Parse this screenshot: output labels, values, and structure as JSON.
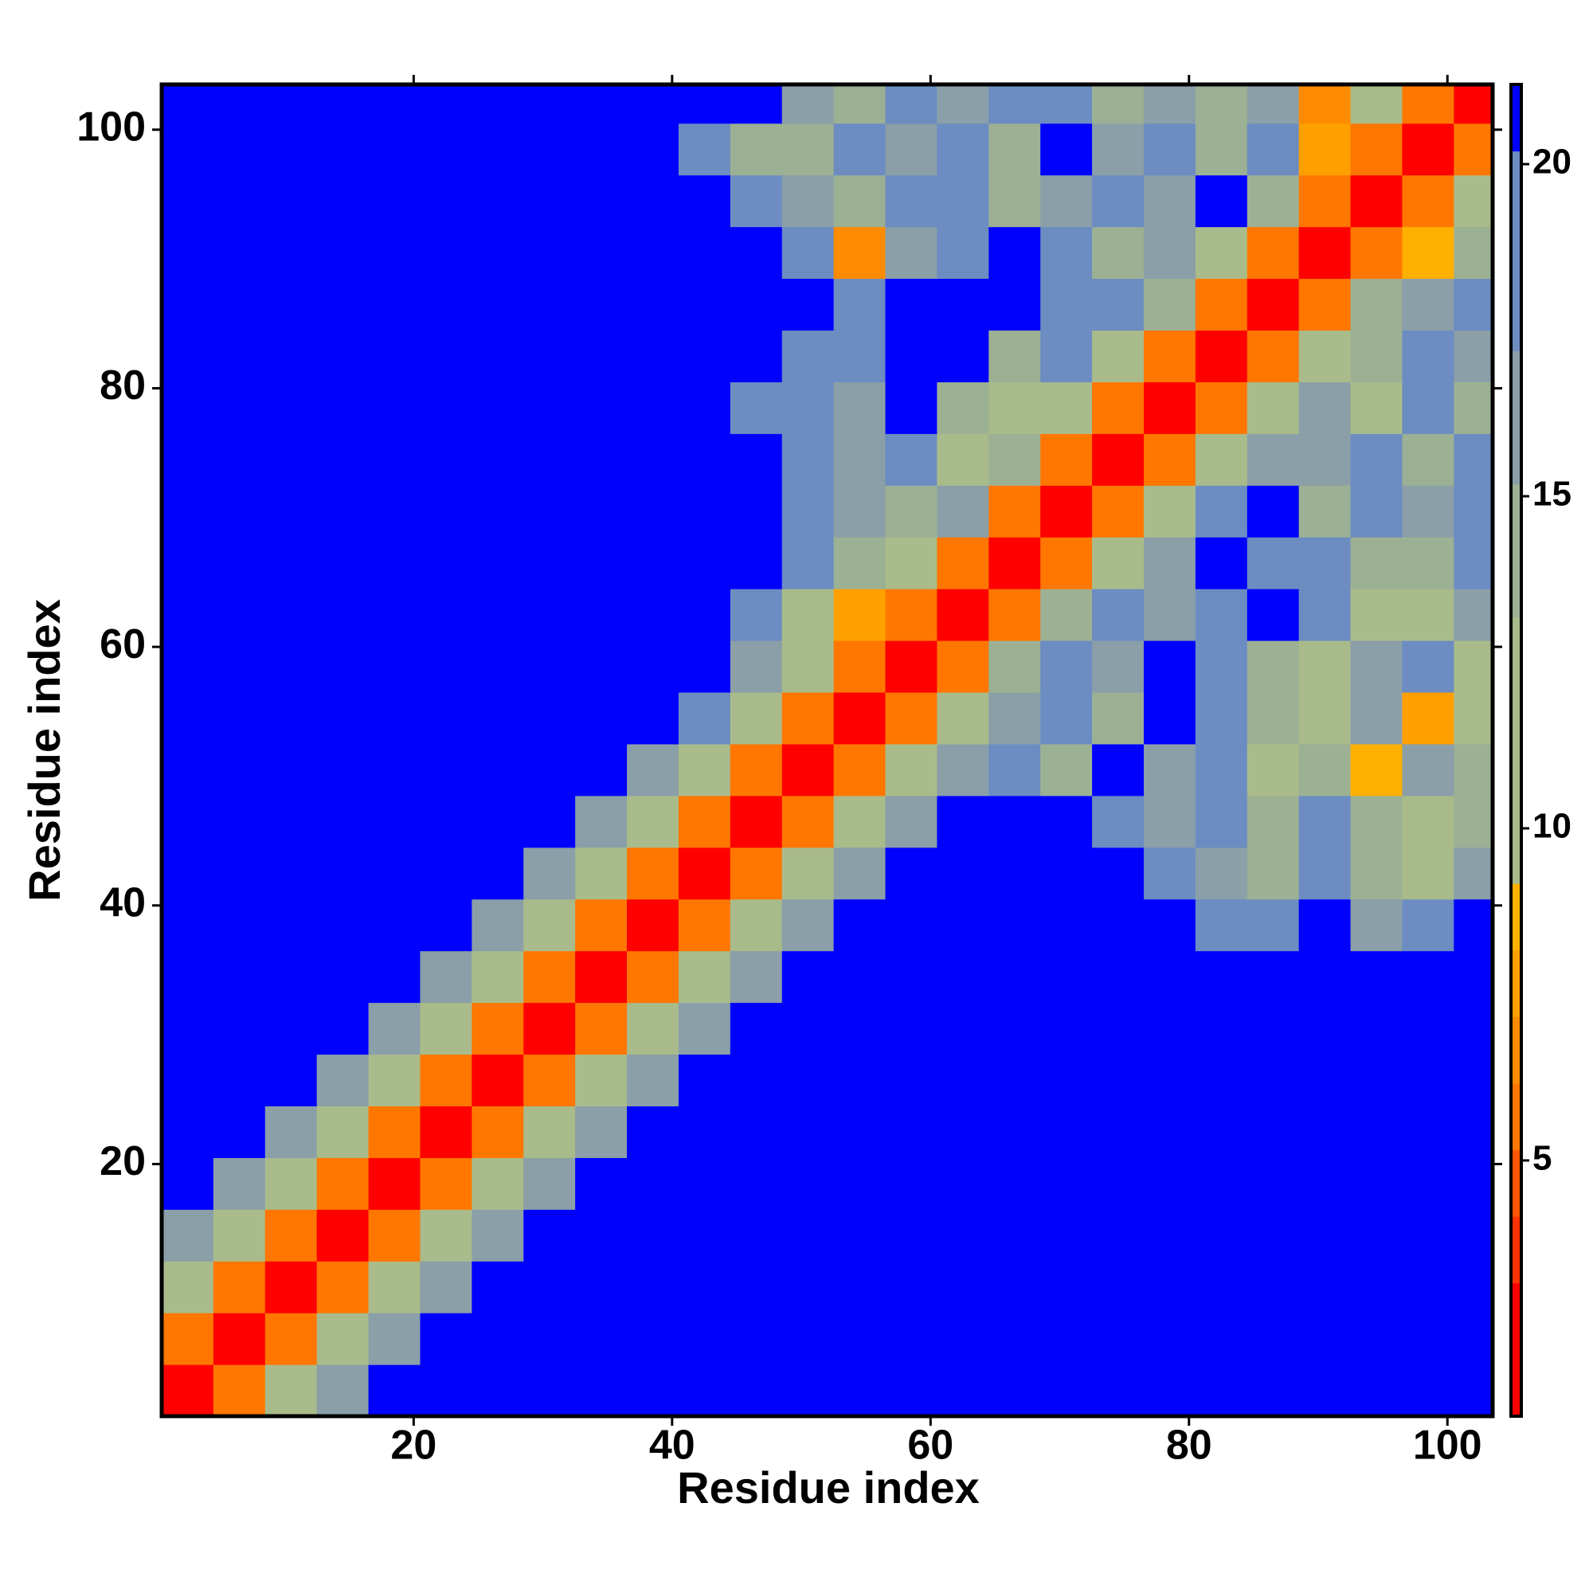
{
  "chart_data": {
    "type": "heatmap",
    "xlabel": "Residue index",
    "ylabel": "Residue index",
    "x_bins": [
      0.5,
      4.5,
      8.5,
      12.5,
      16.5,
      20.5,
      24.5,
      28.5,
      32.5,
      36.5,
      40.5,
      44.5,
      48.5,
      52.5,
      56.5,
      60.5,
      64.5,
      68.5,
      72.5,
      76.5,
      80.5,
      84.5,
      88.5,
      92.5,
      96.5,
      100.5,
      103.5
    ],
    "y_bins": [
      0.5,
      4.5,
      8.5,
      12.5,
      16.5,
      20.5,
      24.5,
      28.5,
      32.5,
      36.5,
      40.5,
      44.5,
      48.5,
      52.5,
      56.5,
      60.5,
      64.5,
      68.5,
      72.5,
      76.5,
      80.5,
      84.5,
      88.5,
      92.5,
      96.5,
      100.5,
      103.5
    ],
    "xlim": [
      0.5,
      103.5
    ],
    "ylim": [
      0.5,
      103.5
    ],
    "xticks": [
      20,
      40,
      60,
      80,
      100
    ],
    "yticks": [
      20,
      40,
      60,
      80,
      100
    ],
    "clim": [
      1.15,
      21.2
    ],
    "cticks": [
      5,
      10,
      15,
      20
    ],
    "colormap": [
      "#ff0000",
      "#ff0000",
      "#ff3300",
      "#ff5500",
      "#ff7700",
      "#ff8c00",
      "#ffa000",
      "#ffb000",
      "#a9bb8a",
      "#a9bb8a",
      "#a9bb8a",
      "#a9bb8a",
      "#9cb094",
      "#9cb094",
      "#8a9fa8",
      "#8a9fa8",
      "#6c8cc2",
      "#6c8cc2",
      "#6c8cc2",
      "#0000ff"
    ],
    "over_color": "#0000ff",
    "values": [
      [
        2,
        6,
        11,
        17,
        25,
        25,
        25,
        25,
        25,
        25,
        25,
        25,
        25,
        25,
        25,
        25,
        25,
        25,
        25,
        25,
        25,
        25,
        25,
        25,
        25,
        25
      ],
      [
        6,
        2,
        6,
        11,
        17,
        25,
        25,
        25,
        25,
        25,
        25,
        25,
        25,
        25,
        25,
        25,
        25,
        25,
        25,
        25,
        25,
        25,
        25,
        25,
        25,
        25
      ],
      [
        11,
        6,
        2,
        6,
        11,
        17,
        25,
        25,
        25,
        25,
        25,
        25,
        25,
        25,
        25,
        25,
        25,
        25,
        25,
        25,
        25,
        25,
        25,
        25,
        25,
        25
      ],
      [
        17,
        11,
        6,
        2,
        6,
        11,
        17,
        25,
        25,
        25,
        25,
        25,
        25,
        25,
        25,
        25,
        25,
        25,
        25,
        25,
        25,
        25,
        25,
        25,
        25,
        25
      ],
      [
        25,
        17,
        11,
        6,
        2,
        6,
        11,
        17,
        25,
        25,
        25,
        25,
        25,
        25,
        25,
        25,
        25,
        25,
        25,
        25,
        25,
        25,
        25,
        25,
        25,
        25
      ],
      [
        25,
        25,
        17,
        11,
        6,
        2,
        6,
        11,
        17,
        25,
        25,
        25,
        25,
        25,
        25,
        25,
        25,
        25,
        25,
        25,
        25,
        25,
        25,
        25,
        25,
        25
      ],
      [
        25,
        25,
        25,
        17,
        11,
        6,
        2,
        6,
        11,
        17,
        25,
        25,
        25,
        25,
        25,
        25,
        25,
        25,
        25,
        25,
        25,
        25,
        25,
        25,
        25,
        25
      ],
      [
        25,
        25,
        25,
        25,
        17,
        11,
        6,
        2,
        6,
        11,
        17,
        25,
        25,
        25,
        25,
        25,
        25,
        25,
        25,
        25,
        25,
        25,
        25,
        25,
        25,
        25
      ],
      [
        25,
        25,
        25,
        25,
        25,
        17,
        11,
        6,
        2,
        6,
        11,
        17,
        25,
        25,
        25,
        25,
        25,
        25,
        25,
        25,
        25,
        25,
        25,
        25,
        25,
        25
      ],
      [
        25,
        25,
        25,
        25,
        25,
        25,
        17,
        11,
        6,
        2,
        6,
        11,
        17,
        25,
        25,
        25,
        25,
        25,
        25,
        25,
        19,
        18,
        25,
        16,
        19,
        25
      ],
      [
        25,
        25,
        25,
        25,
        25,
        25,
        25,
        17,
        11,
        6,
        2,
        6,
        11,
        17,
        25,
        25,
        25,
        25,
        25,
        18,
        16,
        14,
        19,
        15,
        12,
        16
      ],
      [
        25,
        25,
        25,
        25,
        25,
        25,
        25,
        25,
        17,
        11,
        6,
        2,
        6,
        11,
        17,
        25,
        25,
        25,
        18,
        16,
        20,
        15,
        19,
        14,
        10,
        15
      ],
      [
        25,
        25,
        25,
        25,
        25,
        25,
        25,
        25,
        25,
        17,
        11,
        6,
        2,
        6,
        12,
        16,
        19,
        14,
        25,
        16,
        20,
        13,
        15,
        9,
        16,
        14
      ],
      [
        25,
        25,
        25,
        25,
        25,
        25,
        25,
        25,
        25,
        25,
        18,
        12,
        6,
        2,
        6,
        12,
        17,
        20,
        14,
        25,
        18,
        15,
        13,
        16,
        8,
        12
      ],
      [
        25,
        25,
        25,
        25,
        25,
        25,
        25,
        25,
        25,
        25,
        25,
        17,
        13,
        6,
        2,
        6,
        14,
        18,
        16,
        25,
        20,
        15,
        12,
        16,
        19,
        13
      ],
      [
        25,
        25,
        25,
        25,
        25,
        25,
        25,
        25,
        25,
        25,
        25,
        18,
        12,
        8,
        6,
        2,
        6,
        14,
        19,
        16,
        20,
        25,
        18,
        10,
        13,
        16
      ],
      [
        25,
        25,
        25,
        25,
        25,
        25,
        25,
        25,
        25,
        25,
        25,
        25,
        18,
        14,
        13,
        6,
        2,
        6,
        12,
        16,
        25,
        19,
        20,
        14,
        15,
        18
      ],
      [
        25,
        25,
        25,
        25,
        25,
        25,
        25,
        25,
        25,
        25,
        25,
        25,
        19,
        17,
        14,
        16,
        6,
        2,
        6,
        12,
        18,
        25,
        14,
        19,
        16,
        20
      ],
      [
        25,
        25,
        25,
        25,
        25,
        25,
        25,
        25,
        25,
        25,
        25,
        25,
        18,
        16,
        20,
        13,
        14,
        6,
        2,
        6,
        12,
        17,
        16,
        20,
        14,
        18
      ],
      [
        25,
        25,
        25,
        25,
        25,
        25,
        25,
        25,
        25,
        25,
        25,
        20,
        19,
        16,
        25,
        14,
        13,
        12,
        6,
        2,
        6,
        12,
        16,
        10,
        19,
        15
      ],
      [
        25,
        25,
        25,
        25,
        25,
        25,
        25,
        25,
        25,
        25,
        25,
        25,
        18,
        20,
        25,
        25,
        14,
        19,
        12,
        6,
        2,
        6,
        12,
        15,
        19,
        16
      ],
      [
        25,
        25,
        25,
        25,
        25,
        25,
        25,
        25,
        25,
        25,
        25,
        25,
        25,
        19,
        25,
        25,
        25,
        18,
        20,
        14,
        6,
        2,
        6,
        14,
        16,
        20
      ],
      [
        25,
        25,
        25,
        25,
        25,
        25,
        25,
        25,
        25,
        25,
        25,
        25,
        19,
        7,
        16,
        20,
        25,
        18,
        15,
        16,
        13,
        6,
        2,
        6,
        9,
        14
      ],
      [
        25,
        25,
        25,
        25,
        25,
        25,
        25,
        25,
        25,
        25,
        25,
        20,
        17,
        15,
        18,
        19,
        14,
        16,
        20,
        17,
        25,
        14,
        6,
        2,
        6,
        10
      ],
      [
        25,
        25,
        25,
        25,
        25,
        25,
        25,
        25,
        25,
        25,
        19,
        15,
        14,
        18,
        16,
        20,
        14,
        25,
        16,
        20,
        15,
        18,
        8,
        6,
        2,
        6
      ],
      [
        25,
        25,
        25,
        25,
        25,
        25,
        25,
        25,
        25,
        25,
        25,
        25,
        17,
        15,
        19,
        16,
        18,
        20,
        15,
        17,
        14,
        16,
        7,
        12,
        6,
        2
      ]
    ]
  }
}
